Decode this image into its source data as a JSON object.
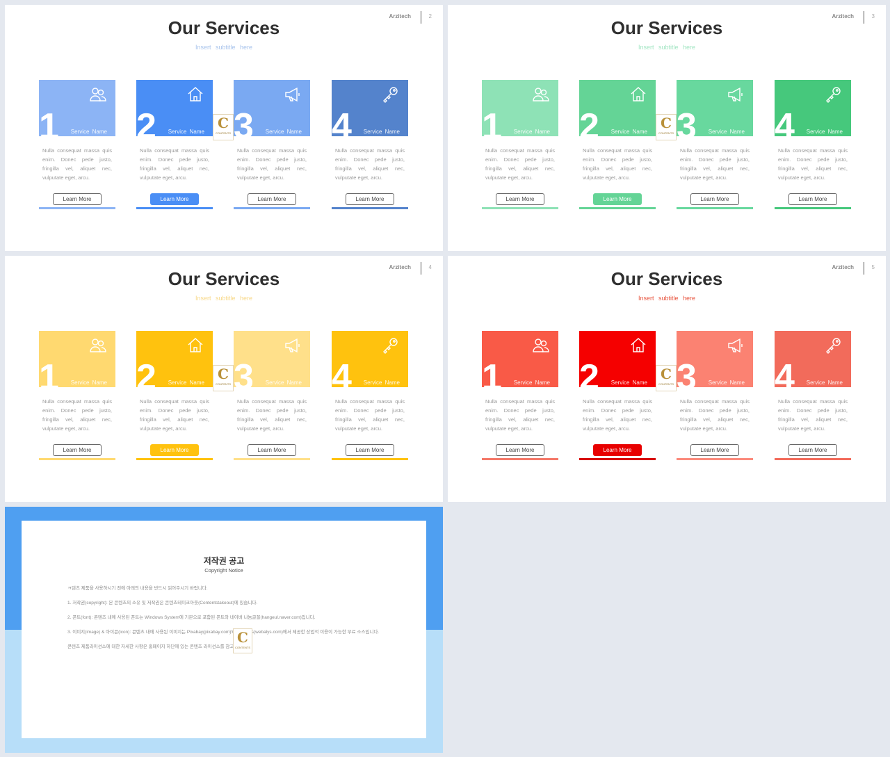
{
  "slides": [
    {
      "brand": "Arzitech",
      "page": "2",
      "title": "Our Services",
      "subtitle": "Insert  subtitle  here",
      "colors": {
        "subtitle": "#a9c4ec",
        "tiles": [
          "#8cb4f5",
          "#4a8ef5",
          "#7aa9f2",
          "#5483cc"
        ],
        "button": "#4a8ef5",
        "lines": [
          "#8cb4f5",
          "#4a8ef5",
          "#7aa9f2",
          "#5483cc"
        ]
      },
      "cards": [
        {
          "number": "1",
          "name": "Service  Name",
          "icon": "users-icon",
          "desc": "Nulla consequat massa quis enim. Donec pede justo, fringilla vel, aliquet nec, vulputate eget, arcu.",
          "button": "Learn More"
        },
        {
          "number": "2",
          "name": "Service  Name",
          "icon": "home-icon",
          "desc": "Nulla consequat massa quis enim. Donec pede justo, fringilla vel, aliquet nec, vulputate eget, arcu.",
          "button": "Learn More"
        },
        {
          "number": "3",
          "name": "Service  Name",
          "icon": "megaphone-icon",
          "desc": "Nulla consequat massa quis enim. Donec pede justo, fringilla vel, aliquet nec, vulputate eget, arcu.",
          "button": "Learn More"
        },
        {
          "number": "4",
          "name": "Service  Name",
          "icon": "key-icon",
          "desc": "Nulla consequat massa quis enim. Donec pede justo, fringilla vel, aliquet nec, vulputate eget, arcu.",
          "button": "Learn More"
        }
      ]
    },
    {
      "brand": "Arzitech",
      "page": "3",
      "title": "Our Services",
      "subtitle": "Insert  subtitle  here",
      "colors": {
        "subtitle": "#a3e6c3",
        "tiles": [
          "#8ee2b6",
          "#64d496",
          "#68d89e",
          "#46c87c"
        ],
        "button": "#64d496",
        "lines": [
          "#8ee2b6",
          "#64d496",
          "#68d89e",
          "#46c87c"
        ]
      },
      "cards": [
        {
          "number": "1",
          "name": "Service  Name",
          "icon": "users-icon",
          "desc": "Nulla consequat massa quis enim. Donec pede justo, fringilla vel, aliquet nec, vulputate eget, arcu.",
          "button": "Learn More"
        },
        {
          "number": "2",
          "name": "Service  Name",
          "icon": "home-icon",
          "desc": "Nulla consequat massa quis enim. Donec pede justo, fringilla vel, aliquet nec, vulputate eget, arcu.",
          "button": "Learn More"
        },
        {
          "number": "3",
          "name": "Service  Name",
          "icon": "megaphone-icon",
          "desc": "Nulla consequat massa quis enim. Donec pede justo, fringilla vel, aliquet nec, vulputate eget, arcu.",
          "button": "Learn More"
        },
        {
          "number": "4",
          "name": "Service  Name",
          "icon": "key-icon",
          "desc": "Nulla consequat massa quis enim. Donec pede justo, fringilla vel, aliquet nec, vulputate eget, arcu.",
          "button": "Learn More"
        }
      ]
    },
    {
      "brand": "Arzitech",
      "page": "4",
      "title": "Our Services",
      "subtitle": "Insert  subtitle  here",
      "colors": {
        "subtitle": "#f8d98a",
        "tiles": [
          "#ffd970",
          "#ffc20e",
          "#ffe08a",
          "#ffc20e"
        ],
        "button": "#ffc20e",
        "lines": [
          "#ffd970",
          "#ffc20e",
          "#ffe08a",
          "#ffc20e"
        ]
      },
      "cards": [
        {
          "number": "1",
          "name": "Service  Name",
          "icon": "users-icon",
          "desc": "Nulla consequat massa quis enim. Donec pede justo, fringilla vel, aliquet nec, vulputate eget, arcu.",
          "button": "Learn More"
        },
        {
          "number": "2",
          "name": "Service  Name",
          "icon": "home-icon",
          "desc": "Nulla consequat massa quis enim. Donec pede justo, fringilla vel, aliquet nec, vulputate eget, arcu.",
          "button": "Learn More"
        },
        {
          "number": "3",
          "name": "Service  Name",
          "icon": "megaphone-icon",
          "desc": "Nulla consequat massa quis enim. Donec pede justo, fringilla vel, aliquet nec, vulputate eget, arcu.",
          "button": "Learn More"
        },
        {
          "number": "4",
          "name": "Service  Name",
          "icon": "key-icon",
          "desc": "Nulla consequat massa quis enim. Donec pede justo, fringilla vel, aliquet nec, vulputate eget, arcu.",
          "button": "Learn More"
        }
      ]
    },
    {
      "brand": "Arzitech",
      "page": "5",
      "title": "Our Services",
      "subtitle": "Insert  subtitle  here",
      "colors": {
        "subtitle": "#e8553f",
        "tiles": [
          "#f95a47",
          "#f50000",
          "#fb8272",
          "#f26b5b"
        ],
        "button": "#e80000",
        "lines": [
          "#f47868",
          "#d60000",
          "#fb8a7c",
          "#f26b5b"
        ]
      },
      "cards": [
        {
          "number": "1",
          "name": "Service  Name",
          "icon": "users-icon",
          "desc": "Nulla consequat massa quis enim. Donec pede justo, fringilla vel, aliquet nec, vulputate eget, arcu.",
          "button": "Learn More"
        },
        {
          "number": "2",
          "name": "Service  Name",
          "icon": "home-icon",
          "desc": "Nulla consequat massa quis enim. Donec pede justo, fringilla vel, aliquet nec, vulputate eget, arcu.",
          "button": "Learn More"
        },
        {
          "number": "3",
          "name": "Service  Name",
          "icon": "megaphone-icon",
          "desc": "Nulla consequat massa quis enim. Donec pede justo, fringilla vel, aliquet nec, vulputate eget, arcu.",
          "button": "Learn More"
        },
        {
          "number": "4",
          "name": "Service  Name",
          "icon": "key-icon",
          "desc": "Nulla consequat massa quis enim. Donec pede justo, fringilla vel, aliquet nec, vulputate eget, arcu.",
          "button": "Learn More"
        }
      ]
    }
  ],
  "watermark": {
    "letter": "C",
    "text": "CONTENTS"
  },
  "copyright": {
    "title": "저작권 공고",
    "subtitle": "Copyright Notice",
    "paragraphs": [
      "ㅋ텐츠 제품을 사용하시기 전에 아래의 내용을 반드시 읽어주시기 바랍니다.",
      "1. 저작권(copyright): 본 콘텐츠의 소유 및 저작권은 콘텐츠테이크아웃(Contentstakeout)에 있습니다.",
      "2. 폰트(font): 콘텐츠 내에 사용된 폰트는 Windows System에 기본으로 포함된 폰트와 네이버 나눔글꼴(hangeul.naver.com)입니다.",
      "3. 이미지(image) & 아이콘(icon): 콘텐츠 내에 사용된 이미지는 Pixabay(pixabay.com)와 Webalys(webalys.com)에서 제공한 상업적 이용이 가능한 무료 소스입니다.",
      "콘텐츠 제품라이선스에 대한 자세한 사항은 홈페이지 하단에 있는 콘텐츠 라이선스를 참고하세요."
    ]
  }
}
